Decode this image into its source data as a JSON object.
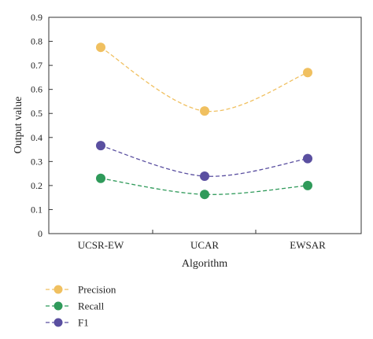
{
  "chart_data": {
    "type": "line",
    "categories": [
      "UCSR-EW",
      "UCAR",
      "EWSAR"
    ],
    "series": [
      {
        "name": "Precision",
        "values": [
          0.775,
          0.51,
          0.67
        ],
        "color": "#f0c060"
      },
      {
        "name": "Recall",
        "values": [
          0.23,
          0.163,
          0.2
        ],
        "color": "#2f9a5a"
      },
      {
        "name": "F1",
        "values": [
          0.366,
          0.239,
          0.312
        ],
        "color": "#5a4fa0"
      }
    ],
    "xlabel": "Algorithm",
    "ylabel": "Output value",
    "ylim": [
      0,
      0.9
    ],
    "yticks": [
      "0",
      "0.1",
      "0.2",
      "0.3",
      "0.4",
      "0.5",
      "0.6",
      "0.7",
      "0.8",
      "0.9"
    ],
    "line_style": "dashed",
    "smooth": true,
    "grid": false,
    "legend_position": "bottom-left"
  }
}
